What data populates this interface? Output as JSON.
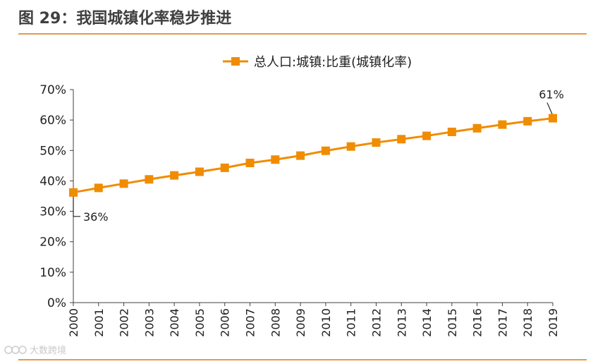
{
  "figure": {
    "title": "图 29：我国城镇化率稳步推进"
  },
  "watermark": {
    "text": "大数跨境"
  },
  "colors": {
    "accent": "#E49A4A",
    "series": "#F08C00",
    "axis": "#404040",
    "text": "#222222"
  },
  "chart_data": {
    "type": "line",
    "categories": [
      "2000",
      "2001",
      "2002",
      "2003",
      "2004",
      "2005",
      "2006",
      "2007",
      "2008",
      "2009",
      "2010",
      "2011",
      "2012",
      "2013",
      "2014",
      "2015",
      "2016",
      "2017",
      "2018",
      "2019"
    ],
    "series": [
      {
        "name": "总人口:城镇:比重(城镇化率)",
        "values": [
          36.2,
          37.7,
          39.1,
          40.5,
          41.8,
          43.0,
          44.3,
          45.9,
          47.0,
          48.3,
          49.9,
          51.3,
          52.6,
          53.7,
          54.8,
          56.1,
          57.3,
          58.5,
          59.6,
          60.6
        ],
        "marker": "square"
      }
    ],
    "ylim": [
      0,
      70
    ],
    "yticks": [
      0,
      10,
      20,
      30,
      40,
      50,
      60,
      70
    ],
    "ytick_format": "percent",
    "x_tick_rotation": "vertical",
    "xlabel": "",
    "ylabel": "",
    "legend": "top-center",
    "grid": false,
    "annotations": [
      {
        "text": "36%",
        "category": "2000",
        "value": 36.2
      },
      {
        "text": "61%",
        "category": "2019",
        "value": 60.6
      }
    ]
  }
}
